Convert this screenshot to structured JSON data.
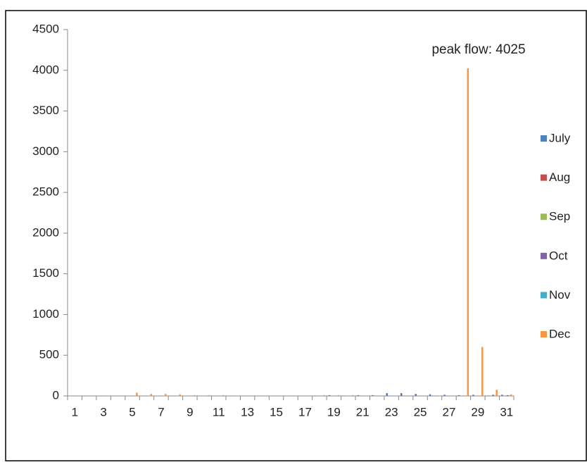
{
  "chart_data": {
    "type": "bar",
    "annotation": "peak flow: 4025",
    "categories": [
      "1",
      null,
      "3",
      null,
      "5",
      null,
      "7",
      null,
      "9",
      null,
      "11",
      null,
      "13",
      null,
      "15",
      null,
      "17",
      null,
      "19",
      null,
      "21",
      null,
      "23",
      null,
      "25",
      null,
      "27",
      null,
      "29",
      null,
      "31"
    ],
    "series": [
      {
        "name": "July",
        "color": "#4f81bd",
        "values": [
          0,
          0,
          0,
          0,
          0,
          0,
          0,
          0,
          0,
          0,
          0,
          0,
          0,
          0,
          0,
          0,
          0,
          5,
          10,
          5,
          10,
          10,
          35,
          35,
          25,
          20,
          15,
          10,
          15,
          5,
          15
        ]
      },
      {
        "name": "Aug",
        "color": "#c0504d",
        "values": [
          0,
          0,
          0,
          0,
          0,
          0,
          0,
          0,
          0,
          0,
          0,
          0,
          0,
          0,
          0,
          0,
          0,
          0,
          0,
          0,
          0,
          0,
          0,
          0,
          0,
          0,
          0,
          0,
          0,
          0,
          0
        ]
      },
      {
        "name": "Sep",
        "color": "#9bbb59",
        "values": [
          0,
          0,
          0,
          0,
          0,
          0,
          0,
          0,
          0,
          0,
          0,
          0,
          0,
          0,
          0,
          0,
          0,
          0,
          0,
          0,
          0,
          0,
          0,
          0,
          0,
          0,
          0,
          0,
          0,
          0,
          0
        ]
      },
      {
        "name": "Oct",
        "color": "#8064a2",
        "values": [
          0,
          0,
          0,
          0,
          0,
          0,
          0,
          0,
          0,
          0,
          0,
          0,
          0,
          0,
          0,
          0,
          0,
          0,
          0,
          0,
          0,
          0,
          0,
          0,
          0,
          0,
          0,
          0,
          0,
          15,
          10
        ]
      },
      {
        "name": "Nov",
        "color": "#4bacc6",
        "values": [
          0,
          0,
          0,
          0,
          0,
          0,
          0,
          0,
          0,
          0,
          0,
          0,
          0,
          0,
          0,
          0,
          0,
          0,
          0,
          0,
          0,
          0,
          0,
          0,
          0,
          0,
          0,
          0,
          0,
          0,
          0
        ]
      },
      {
        "name": "Dec",
        "color": "#f79646",
        "values": [
          0,
          0,
          0,
          0,
          40,
          25,
          25,
          20,
          10,
          10,
          10,
          0,
          0,
          0,
          0,
          0,
          0,
          10,
          10,
          10,
          0,
          0,
          0,
          0,
          0,
          0,
          0,
          4025,
          600,
          75,
          20
        ]
      }
    ],
    "ylim": [
      0,
      4500
    ],
    "yticks": [
      0,
      500,
      1000,
      1500,
      2000,
      2500,
      3000,
      3500,
      4000,
      4500
    ],
    "grid": false,
    "legend": "right"
  }
}
